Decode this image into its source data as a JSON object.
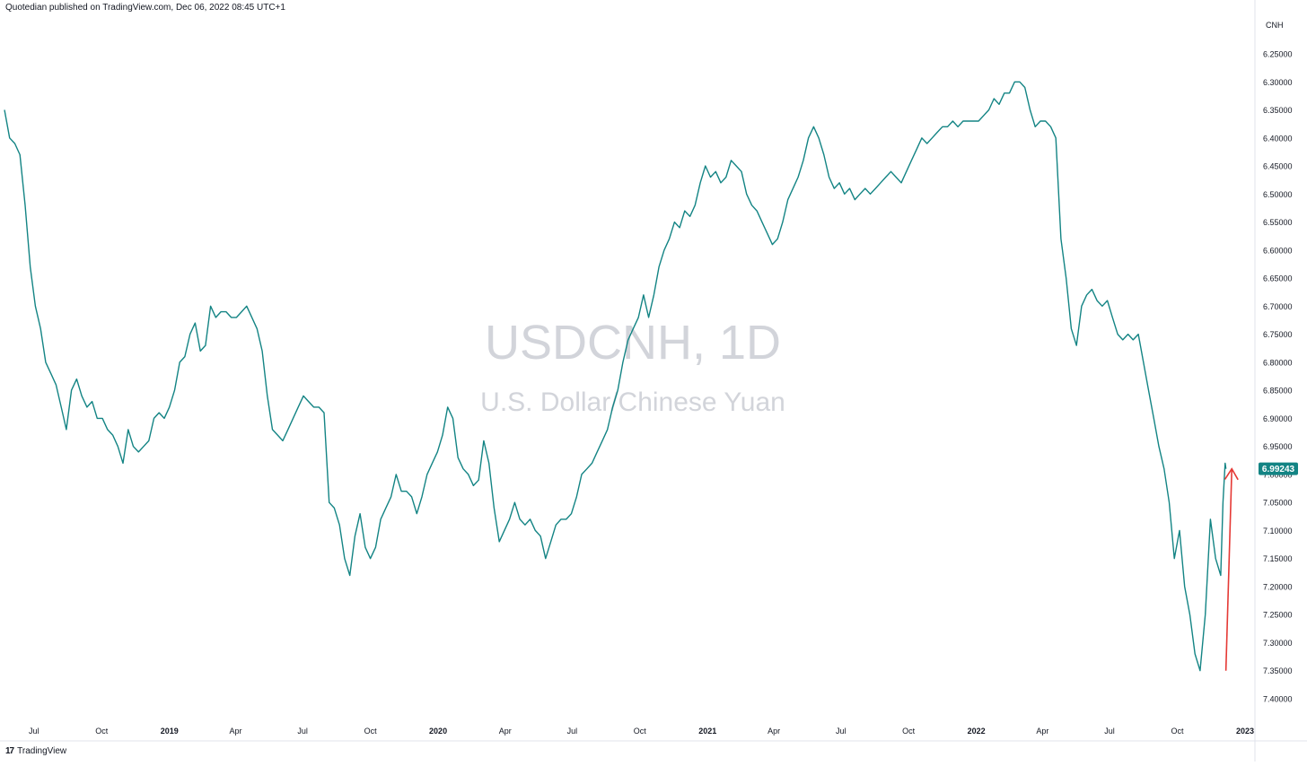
{
  "header": {
    "published_text": "Quotedian published on TradingView.com, Dec 06, 2022 08:45 UTC+1"
  },
  "brand": {
    "logo_glyph": "17",
    "name": "TradingView"
  },
  "watermark": {
    "symbol_line": "USDCNH, 1D",
    "description": "U.S. Dollar/Chinese Yuan"
  },
  "price_label": {
    "text": "6.99243",
    "color": "#138484"
  },
  "annotation": {
    "color": "#e53935"
  },
  "chart_data": {
    "type": "line",
    "symbol": "USDCNH",
    "interval": "1D",
    "y_axis_unit": "CNH",
    "y_axis_inverted": true,
    "ylim": [
      7.4,
      6.2
    ],
    "xlim": [
      "2018-05-22",
      "2023-01-12"
    ],
    "grid": false,
    "series_color": "#138484",
    "y_ticks": [
      "6.25000",
      "6.30000",
      "6.35000",
      "6.40000",
      "6.45000",
      "6.50000",
      "6.55000",
      "6.60000",
      "6.65000",
      "6.70000",
      "6.75000",
      "6.80000",
      "6.85000",
      "6.90000",
      "6.95000",
      "7.00000",
      "7.05000",
      "7.10000",
      "7.15000",
      "7.20000",
      "7.25000",
      "7.30000",
      "7.35000",
      "7.40000"
    ],
    "x_ticks": [
      {
        "label": "Jul",
        "date": "2018-07-01",
        "bold": false
      },
      {
        "label": "Oct",
        "date": "2018-10-01",
        "bold": false
      },
      {
        "label": "2019",
        "date": "2019-01-01",
        "bold": true
      },
      {
        "label": "Apr",
        "date": "2019-04-01",
        "bold": false
      },
      {
        "label": "Jul",
        "date": "2019-07-01",
        "bold": false
      },
      {
        "label": "Oct",
        "date": "2019-10-01",
        "bold": false
      },
      {
        "label": "2020",
        "date": "2020-01-01",
        "bold": true
      },
      {
        "label": "Apr",
        "date": "2020-04-01",
        "bold": false
      },
      {
        "label": "Jul",
        "date": "2020-07-01",
        "bold": false
      },
      {
        "label": "Oct",
        "date": "2020-10-01",
        "bold": false
      },
      {
        "label": "2021",
        "date": "2021-01-01",
        "bold": true
      },
      {
        "label": "Apr",
        "date": "2021-04-01",
        "bold": false
      },
      {
        "label": "Jul",
        "date": "2021-07-01",
        "bold": false
      },
      {
        "label": "Oct",
        "date": "2021-10-01",
        "bold": false
      },
      {
        "label": "2022",
        "date": "2022-01-01",
        "bold": true
      },
      {
        "label": "Apr",
        "date": "2022-04-01",
        "bold": false
      },
      {
        "label": "Jul",
        "date": "2022-07-01",
        "bold": false
      },
      {
        "label": "Oct",
        "date": "2022-10-01",
        "bold": false
      },
      {
        "label": "2023",
        "date": "2023-01-01",
        "bold": true
      }
    ],
    "series": [
      {
        "points": [
          [
            "2018-05-22",
            6.35
          ],
          [
            "2018-05-29",
            6.4
          ],
          [
            "2018-06-05",
            6.41
          ],
          [
            "2018-06-12",
            6.43
          ],
          [
            "2018-06-19",
            6.52
          ],
          [
            "2018-06-26",
            6.63
          ],
          [
            "2018-07-03",
            6.7
          ],
          [
            "2018-07-10",
            6.74
          ],
          [
            "2018-07-17",
            6.8
          ],
          [
            "2018-07-24",
            6.82
          ],
          [
            "2018-07-31",
            6.84
          ],
          [
            "2018-08-07",
            6.88
          ],
          [
            "2018-08-14",
            6.92
          ],
          [
            "2018-08-21",
            6.85
          ],
          [
            "2018-08-28",
            6.83
          ],
          [
            "2018-09-04",
            6.86
          ],
          [
            "2018-09-11",
            6.88
          ],
          [
            "2018-09-18",
            6.87
          ],
          [
            "2018-09-25",
            6.9
          ],
          [
            "2018-10-02",
            6.9
          ],
          [
            "2018-10-09",
            6.92
          ],
          [
            "2018-10-16",
            6.93
          ],
          [
            "2018-10-23",
            6.95
          ],
          [
            "2018-10-30",
            6.98
          ],
          [
            "2018-11-06",
            6.92
          ],
          [
            "2018-11-13",
            6.95
          ],
          [
            "2018-11-20",
            6.96
          ],
          [
            "2018-11-27",
            6.95
          ],
          [
            "2018-12-04",
            6.94
          ],
          [
            "2018-12-11",
            6.9
          ],
          [
            "2018-12-18",
            6.89
          ],
          [
            "2018-12-25",
            6.9
          ],
          [
            "2019-01-01",
            6.88
          ],
          [
            "2019-01-08",
            6.85
          ],
          [
            "2019-01-15",
            6.8
          ],
          [
            "2019-01-22",
            6.79
          ],
          [
            "2019-01-29",
            6.75
          ],
          [
            "2019-02-05",
            6.73
          ],
          [
            "2019-02-12",
            6.78
          ],
          [
            "2019-02-19",
            6.77
          ],
          [
            "2019-02-26",
            6.7
          ],
          [
            "2019-03-05",
            6.72
          ],
          [
            "2019-03-12",
            6.71
          ],
          [
            "2019-03-19",
            6.71
          ],
          [
            "2019-03-26",
            6.72
          ],
          [
            "2019-04-02",
            6.72
          ],
          [
            "2019-04-09",
            6.71
          ],
          [
            "2019-04-16",
            6.7
          ],
          [
            "2019-04-23",
            6.72
          ],
          [
            "2019-04-30",
            6.74
          ],
          [
            "2019-05-07",
            6.78
          ],
          [
            "2019-05-14",
            6.86
          ],
          [
            "2019-05-21",
            6.92
          ],
          [
            "2019-05-28",
            6.93
          ],
          [
            "2019-06-04",
            6.94
          ],
          [
            "2019-06-11",
            6.92
          ],
          [
            "2019-06-18",
            6.9
          ],
          [
            "2019-06-25",
            6.88
          ],
          [
            "2019-07-02",
            6.86
          ],
          [
            "2019-07-09",
            6.87
          ],
          [
            "2019-07-16",
            6.88
          ],
          [
            "2019-07-23",
            6.88
          ],
          [
            "2019-07-30",
            6.89
          ],
          [
            "2019-08-06",
            7.05
          ],
          [
            "2019-08-13",
            7.06
          ],
          [
            "2019-08-20",
            7.09
          ],
          [
            "2019-08-27",
            7.15
          ],
          [
            "2019-09-03",
            7.18
          ],
          [
            "2019-09-10",
            7.11
          ],
          [
            "2019-09-17",
            7.07
          ],
          [
            "2019-09-24",
            7.13
          ],
          [
            "2019-10-01",
            7.15
          ],
          [
            "2019-10-08",
            7.13
          ],
          [
            "2019-10-15",
            7.08
          ],
          [
            "2019-10-22",
            7.06
          ],
          [
            "2019-10-29",
            7.04
          ],
          [
            "2019-11-05",
            7.0
          ],
          [
            "2019-11-12",
            7.03
          ],
          [
            "2019-11-19",
            7.03
          ],
          [
            "2019-11-26",
            7.04
          ],
          [
            "2019-12-03",
            7.07
          ],
          [
            "2019-12-10",
            7.04
          ],
          [
            "2019-12-17",
            7.0
          ],
          [
            "2019-12-24",
            6.98
          ],
          [
            "2019-12-31",
            6.96
          ],
          [
            "2020-01-07",
            6.93
          ],
          [
            "2020-01-14",
            6.88
          ],
          [
            "2020-01-21",
            6.9
          ],
          [
            "2020-01-28",
            6.97
          ],
          [
            "2020-02-04",
            6.99
          ],
          [
            "2020-02-11",
            7.0
          ],
          [
            "2020-02-18",
            7.02
          ],
          [
            "2020-02-25",
            7.01
          ],
          [
            "2020-03-03",
            6.94
          ],
          [
            "2020-03-10",
            6.98
          ],
          [
            "2020-03-17",
            7.06
          ],
          [
            "2020-03-24",
            7.12
          ],
          [
            "2020-03-31",
            7.1
          ],
          [
            "2020-04-07",
            7.08
          ],
          [
            "2020-04-14",
            7.05
          ],
          [
            "2020-04-21",
            7.08
          ],
          [
            "2020-04-28",
            7.09
          ],
          [
            "2020-05-05",
            7.08
          ],
          [
            "2020-05-12",
            7.1
          ],
          [
            "2020-05-19",
            7.11
          ],
          [
            "2020-05-26",
            7.15
          ],
          [
            "2020-06-02",
            7.12
          ],
          [
            "2020-06-09",
            7.09
          ],
          [
            "2020-06-16",
            7.08
          ],
          [
            "2020-06-23",
            7.08
          ],
          [
            "2020-06-30",
            7.07
          ],
          [
            "2020-07-07",
            7.04
          ],
          [
            "2020-07-14",
            7.0
          ],
          [
            "2020-07-21",
            6.99
          ],
          [
            "2020-07-28",
            6.98
          ],
          [
            "2020-08-04",
            6.96
          ],
          [
            "2020-08-11",
            6.94
          ],
          [
            "2020-08-18",
            6.92
          ],
          [
            "2020-08-25",
            6.88
          ],
          [
            "2020-09-01",
            6.85
          ],
          [
            "2020-09-08",
            6.8
          ],
          [
            "2020-09-15",
            6.76
          ],
          [
            "2020-09-22",
            6.74
          ],
          [
            "2020-09-29",
            6.72
          ],
          [
            "2020-10-06",
            6.68
          ],
          [
            "2020-10-13",
            6.72
          ],
          [
            "2020-10-20",
            6.68
          ],
          [
            "2020-10-27",
            6.63
          ],
          [
            "2020-11-03",
            6.6
          ],
          [
            "2020-11-10",
            6.58
          ],
          [
            "2020-11-17",
            6.55
          ],
          [
            "2020-11-24",
            6.56
          ],
          [
            "2020-12-01",
            6.53
          ],
          [
            "2020-12-08",
            6.54
          ],
          [
            "2020-12-15",
            6.52
          ],
          [
            "2020-12-22",
            6.48
          ],
          [
            "2020-12-29",
            6.45
          ],
          [
            "2021-01-05",
            6.47
          ],
          [
            "2021-01-12",
            6.46
          ],
          [
            "2021-01-19",
            6.48
          ],
          [
            "2021-01-26",
            6.47
          ],
          [
            "2021-02-02",
            6.44
          ],
          [
            "2021-02-09",
            6.45
          ],
          [
            "2021-02-16",
            6.46
          ],
          [
            "2021-02-23",
            6.5
          ],
          [
            "2021-03-02",
            6.52
          ],
          [
            "2021-03-09",
            6.53
          ],
          [
            "2021-03-16",
            6.55
          ],
          [
            "2021-03-23",
            6.57
          ],
          [
            "2021-03-30",
            6.59
          ],
          [
            "2021-04-06",
            6.58
          ],
          [
            "2021-04-13",
            6.55
          ],
          [
            "2021-04-20",
            6.51
          ],
          [
            "2021-04-27",
            6.49
          ],
          [
            "2021-05-04",
            6.47
          ],
          [
            "2021-05-11",
            6.44
          ],
          [
            "2021-05-18",
            6.4
          ],
          [
            "2021-05-25",
            6.38
          ],
          [
            "2021-06-01",
            6.4
          ],
          [
            "2021-06-08",
            6.43
          ],
          [
            "2021-06-15",
            6.47
          ],
          [
            "2021-06-22",
            6.49
          ],
          [
            "2021-06-29",
            6.48
          ],
          [
            "2021-07-06",
            6.5
          ],
          [
            "2021-07-13",
            6.49
          ],
          [
            "2021-07-20",
            6.51
          ],
          [
            "2021-07-27",
            6.5
          ],
          [
            "2021-08-03",
            6.49
          ],
          [
            "2021-08-10",
            6.5
          ],
          [
            "2021-08-17",
            6.49
          ],
          [
            "2021-08-24",
            6.48
          ],
          [
            "2021-08-31",
            6.47
          ],
          [
            "2021-09-07",
            6.46
          ],
          [
            "2021-09-14",
            6.47
          ],
          [
            "2021-09-21",
            6.48
          ],
          [
            "2021-09-28",
            6.46
          ],
          [
            "2021-10-05",
            6.44
          ],
          [
            "2021-10-12",
            6.42
          ],
          [
            "2021-10-19",
            6.4
          ],
          [
            "2021-10-26",
            6.41
          ],
          [
            "2021-11-02",
            6.4
          ],
          [
            "2021-11-09",
            6.39
          ],
          [
            "2021-11-16",
            6.38
          ],
          [
            "2021-11-23",
            6.38
          ],
          [
            "2021-11-30",
            6.37
          ],
          [
            "2021-12-07",
            6.38
          ],
          [
            "2021-12-14",
            6.37
          ],
          [
            "2021-12-21",
            6.37
          ],
          [
            "2021-12-28",
            6.37
          ],
          [
            "2022-01-04",
            6.37
          ],
          [
            "2022-01-11",
            6.36
          ],
          [
            "2022-01-18",
            6.35
          ],
          [
            "2022-01-25",
            6.33
          ],
          [
            "2022-02-01",
            6.34
          ],
          [
            "2022-02-08",
            6.32
          ],
          [
            "2022-02-15",
            6.32
          ],
          [
            "2022-02-22",
            6.3
          ],
          [
            "2022-03-01",
            6.3
          ],
          [
            "2022-03-08",
            6.31
          ],
          [
            "2022-03-15",
            6.35
          ],
          [
            "2022-03-22",
            6.38
          ],
          [
            "2022-03-29",
            6.37
          ],
          [
            "2022-04-05",
            6.37
          ],
          [
            "2022-04-12",
            6.38
          ],
          [
            "2022-04-19",
            6.4
          ],
          [
            "2022-04-26",
            6.58
          ],
          [
            "2022-05-03",
            6.65
          ],
          [
            "2022-05-10",
            6.74
          ],
          [
            "2022-05-17",
            6.77
          ],
          [
            "2022-05-24",
            6.7
          ],
          [
            "2022-05-31",
            6.68
          ],
          [
            "2022-06-07",
            6.67
          ],
          [
            "2022-06-14",
            6.69
          ],
          [
            "2022-06-21",
            6.7
          ],
          [
            "2022-06-28",
            6.69
          ],
          [
            "2022-07-05",
            6.72
          ],
          [
            "2022-07-12",
            6.75
          ],
          [
            "2022-07-19",
            6.76
          ],
          [
            "2022-07-26",
            6.75
          ],
          [
            "2022-08-02",
            6.76
          ],
          [
            "2022-08-09",
            6.75
          ],
          [
            "2022-08-16",
            6.8
          ],
          [
            "2022-08-23",
            6.85
          ],
          [
            "2022-08-30",
            6.9
          ],
          [
            "2022-09-06",
            6.95
          ],
          [
            "2022-09-13",
            6.99
          ],
          [
            "2022-09-20",
            7.05
          ],
          [
            "2022-09-27",
            7.15
          ],
          [
            "2022-10-04",
            7.1
          ],
          [
            "2022-10-11",
            7.2
          ],
          [
            "2022-10-18",
            7.25
          ],
          [
            "2022-10-25",
            7.32
          ],
          [
            "2022-11-01",
            7.35
          ],
          [
            "2022-11-08",
            7.25
          ],
          [
            "2022-11-15",
            7.08
          ],
          [
            "2022-11-22",
            7.15
          ],
          [
            "2022-11-29",
            7.18
          ],
          [
            "2022-12-02",
            7.05
          ],
          [
            "2022-12-05",
            6.98
          ],
          [
            "2022-12-06",
            6.99
          ]
        ]
      }
    ],
    "arrow": {
      "from": [
        "2022-12-06",
        7.35
      ],
      "to": [
        "2022-12-14",
        6.99
      ]
    }
  }
}
